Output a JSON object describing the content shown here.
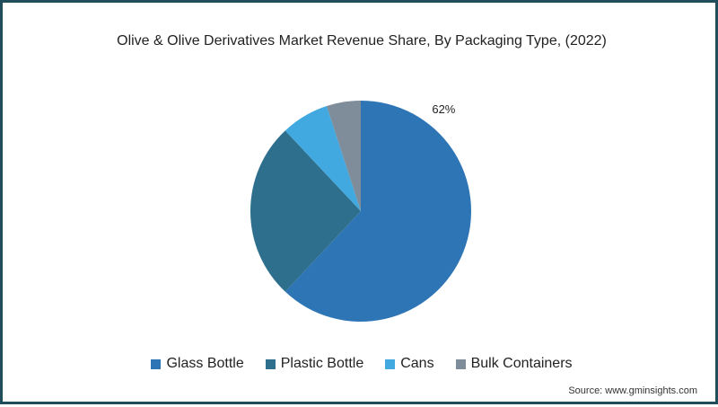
{
  "chart_data": {
    "type": "pie",
    "title": "Olive & Olive Derivatives Market Revenue Share, By Packaging Type, (2022)",
    "categories": [
      "Glass Bottle",
      "Plastic Bottle",
      "Cans",
      "Bulk Containers"
    ],
    "values": [
      62,
      26,
      7,
      5
    ],
    "colors": [
      "#2e75b6",
      "#2e6f8e",
      "#41a9e0",
      "#7f8c99"
    ],
    "data_labels": [
      "62%",
      "",
      "",
      ""
    ],
    "legend_position": "bottom"
  },
  "source": "Source: www.gminsights.com"
}
